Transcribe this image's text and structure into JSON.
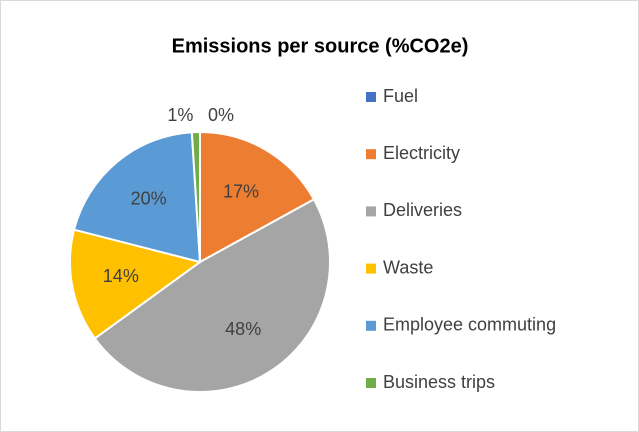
{
  "chart_data": {
    "type": "pie",
    "title": "Emissions per source (%CO2e)",
    "categories": [
      "Fuel",
      "Electricity",
      "Deliveries",
      "Waste",
      "Employee commuting",
      "Business trips"
    ],
    "values": [
      0,
      17,
      48,
      14,
      20,
      1
    ],
    "value_labels": [
      "0%",
      "17%",
      "48%",
      "14%",
      "20%",
      "1%"
    ],
    "colors": [
      "#4472c4",
      "#ed7d31",
      "#a5a5a5",
      "#ffc000",
      "#5b9bd5",
      "#70ad47"
    ],
    "legend": "right"
  }
}
